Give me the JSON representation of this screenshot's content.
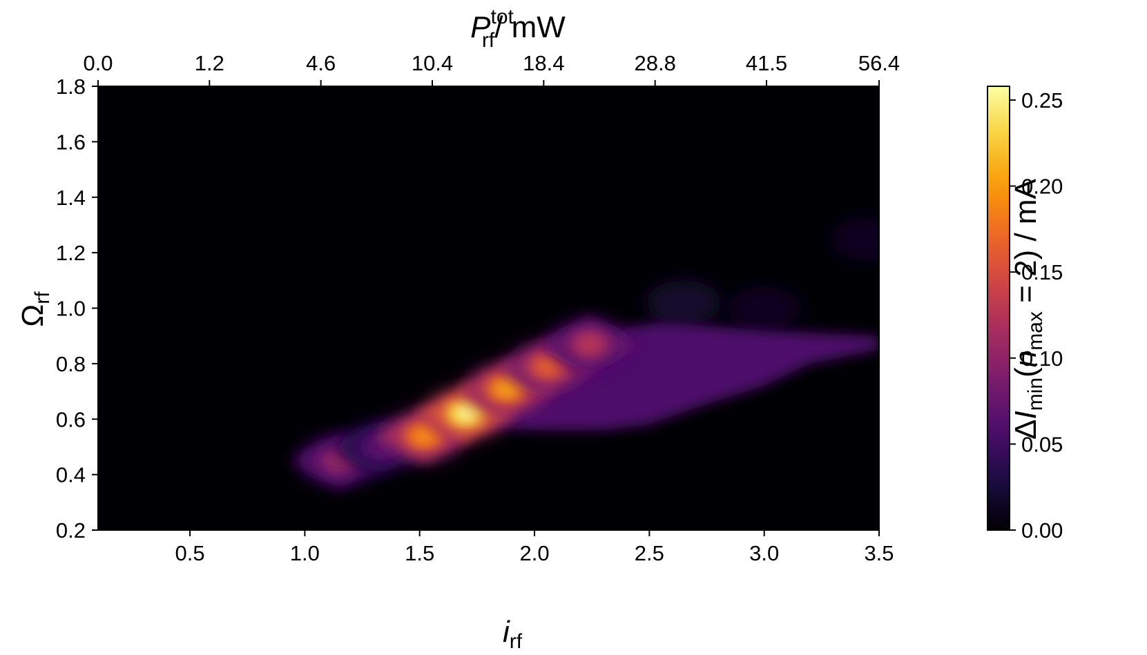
{
  "chart_data": {
    "type": "heatmap",
    "title": "",
    "colormap": "inferno",
    "colormap_stops": [
      "#000004",
      "#1b0c41",
      "#4a0c6b",
      "#781c6d",
      "#a52c60",
      "#cf4446",
      "#ed6925",
      "#fb9b06",
      "#f7d13d",
      "#fcffa4"
    ],
    "xlabel": {
      "symbol": "i",
      "subscript": "rf"
    },
    "ylabel": {
      "symbol": "Ω",
      "subscript": "rf"
    },
    "x2label": {
      "symbol": "P",
      "subscript": "rf",
      "superscript": "tot",
      "suffix": "/ mW"
    },
    "colorbar_label": {
      "prefix": "Δ",
      "symbol": "I",
      "subscript": "min",
      "open": "(",
      "n_symbol": "n",
      "n_subscript": "max",
      "rest": " = 2) / mA"
    },
    "xlim": [
      0.1,
      3.5
    ],
    "ylim": [
      0.2,
      1.8
    ],
    "clim": [
      0.0,
      0.258
    ],
    "xticks": [
      0.5,
      1.0,
      1.5,
      2.0,
      2.5,
      3.0,
      3.5
    ],
    "xtick_labels": [
      "0.5",
      "1.0",
      "1.5",
      "2.0",
      "2.5",
      "3.0",
      "3.5"
    ],
    "yticks": [
      0.2,
      0.4,
      0.6,
      0.8,
      1.0,
      1.2,
      1.4,
      1.6,
      1.8
    ],
    "ytick_labels": [
      "0.2",
      "0.4",
      "0.6",
      "0.8",
      "1.0",
      "1.2",
      "1.4",
      "1.6",
      "1.8"
    ],
    "x2ticks_at_i": [
      0.1,
      0.585,
      1.07,
      1.555,
      2.04,
      2.525,
      3.01,
      3.5
    ],
    "x2tick_labels": [
      "0.0",
      "1.2",
      "4.6",
      "10.4",
      "18.4",
      "28.8",
      "41.5",
      "56.4"
    ],
    "cticks": [
      0.0,
      0.05,
      0.1,
      0.15,
      0.2,
      0.25
    ],
    "ctick_labels": [
      "0.00",
      "0.05",
      "0.10",
      "0.15",
      "0.20",
      "0.25"
    ],
    "peaks": [
      {
        "x": 1.15,
        "y": 0.45,
        "value": 0.11
      },
      {
        "x": 1.33,
        "y": 0.5,
        "value": 0.07
      },
      {
        "x": 1.52,
        "y": 0.54,
        "value": 0.2
      },
      {
        "x": 1.7,
        "y": 0.62,
        "value": 0.258
      },
      {
        "x": 1.88,
        "y": 0.71,
        "value": 0.21
      },
      {
        "x": 2.06,
        "y": 0.79,
        "value": 0.17
      },
      {
        "x": 2.24,
        "y": 0.87,
        "value": 0.13
      }
    ],
    "plateau": {
      "value": 0.06,
      "polygon": [
        [
          1.55,
          0.56
        ],
        [
          2.0,
          0.75
        ],
        [
          2.25,
          0.85
        ],
        [
          2.4,
          0.93
        ],
        [
          2.55,
          0.95
        ],
        [
          3.0,
          0.92
        ],
        [
          3.5,
          0.9
        ],
        [
          3.5,
          0.85
        ],
        [
          3.2,
          0.8
        ],
        [
          3.0,
          0.72
        ],
        [
          2.7,
          0.64
        ],
        [
          2.5,
          0.58
        ],
        [
          2.3,
          0.56
        ],
        [
          2.0,
          0.56
        ],
        [
          1.8,
          0.57
        ]
      ]
    },
    "faint_regions": [
      {
        "x": 2.65,
        "y": 1.02,
        "value": 0.02
      },
      {
        "x": 3.0,
        "y": 1.0,
        "value": 0.015
      },
      {
        "x": 3.45,
        "y": 1.25,
        "value": 0.015
      }
    ]
  }
}
